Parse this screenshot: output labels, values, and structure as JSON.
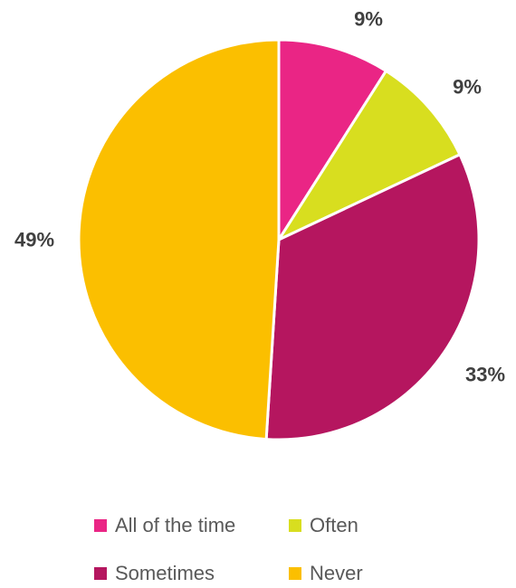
{
  "chart_data": {
    "type": "pie",
    "categories": [
      "All of the time",
      "Often",
      "Sometimes",
      "Never"
    ],
    "values": [
      9,
      9,
      33,
      49
    ],
    "data_labels": [
      "9%",
      "9%",
      "33%",
      "49%"
    ],
    "colors": [
      "#ea2585",
      "#d8de1f",
      "#b5165f",
      "#fbbf00"
    ],
    "legend_position": "bottom"
  }
}
